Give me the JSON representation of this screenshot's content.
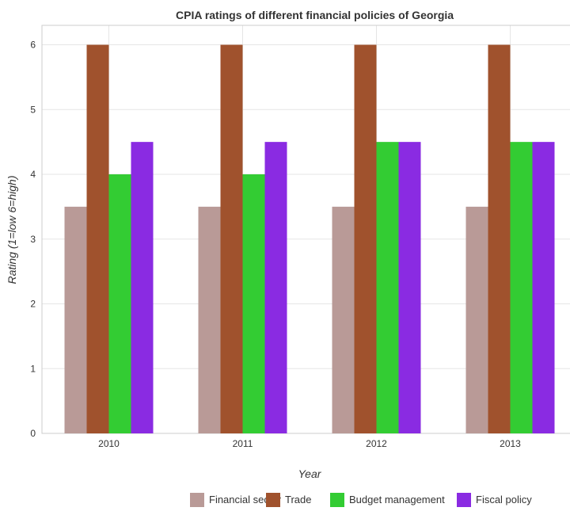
{
  "chart_data": {
    "type": "bar",
    "title": "CPIA ratings of different financial policies of Georgia",
    "xlabel": "Year",
    "ylabel": "Rating (1=low 6=high)",
    "categories": [
      "2010",
      "2011",
      "2012",
      "2013"
    ],
    "ylim": [
      0,
      6.3
    ],
    "yticks": [
      "0",
      "1",
      "2",
      "3",
      "4",
      "5",
      "6"
    ],
    "grid": true,
    "legend_position": "bottom-right",
    "series": [
      {
        "name": "Financial sector",
        "color": "#b99a97",
        "values": [
          3.5,
          3.5,
          3.5,
          3.5
        ]
      },
      {
        "name": "Trade",
        "color": "#a0522d",
        "values": [
          6,
          6,
          6,
          6
        ]
      },
      {
        "name": "Budget management",
        "color": "#33cc33",
        "values": [
          4,
          4,
          4.5,
          4.5
        ]
      },
      {
        "name": "Fiscal policy",
        "color": "#8a2be2",
        "values": [
          4.5,
          4.5,
          4.5,
          4.5
        ]
      }
    ]
  }
}
